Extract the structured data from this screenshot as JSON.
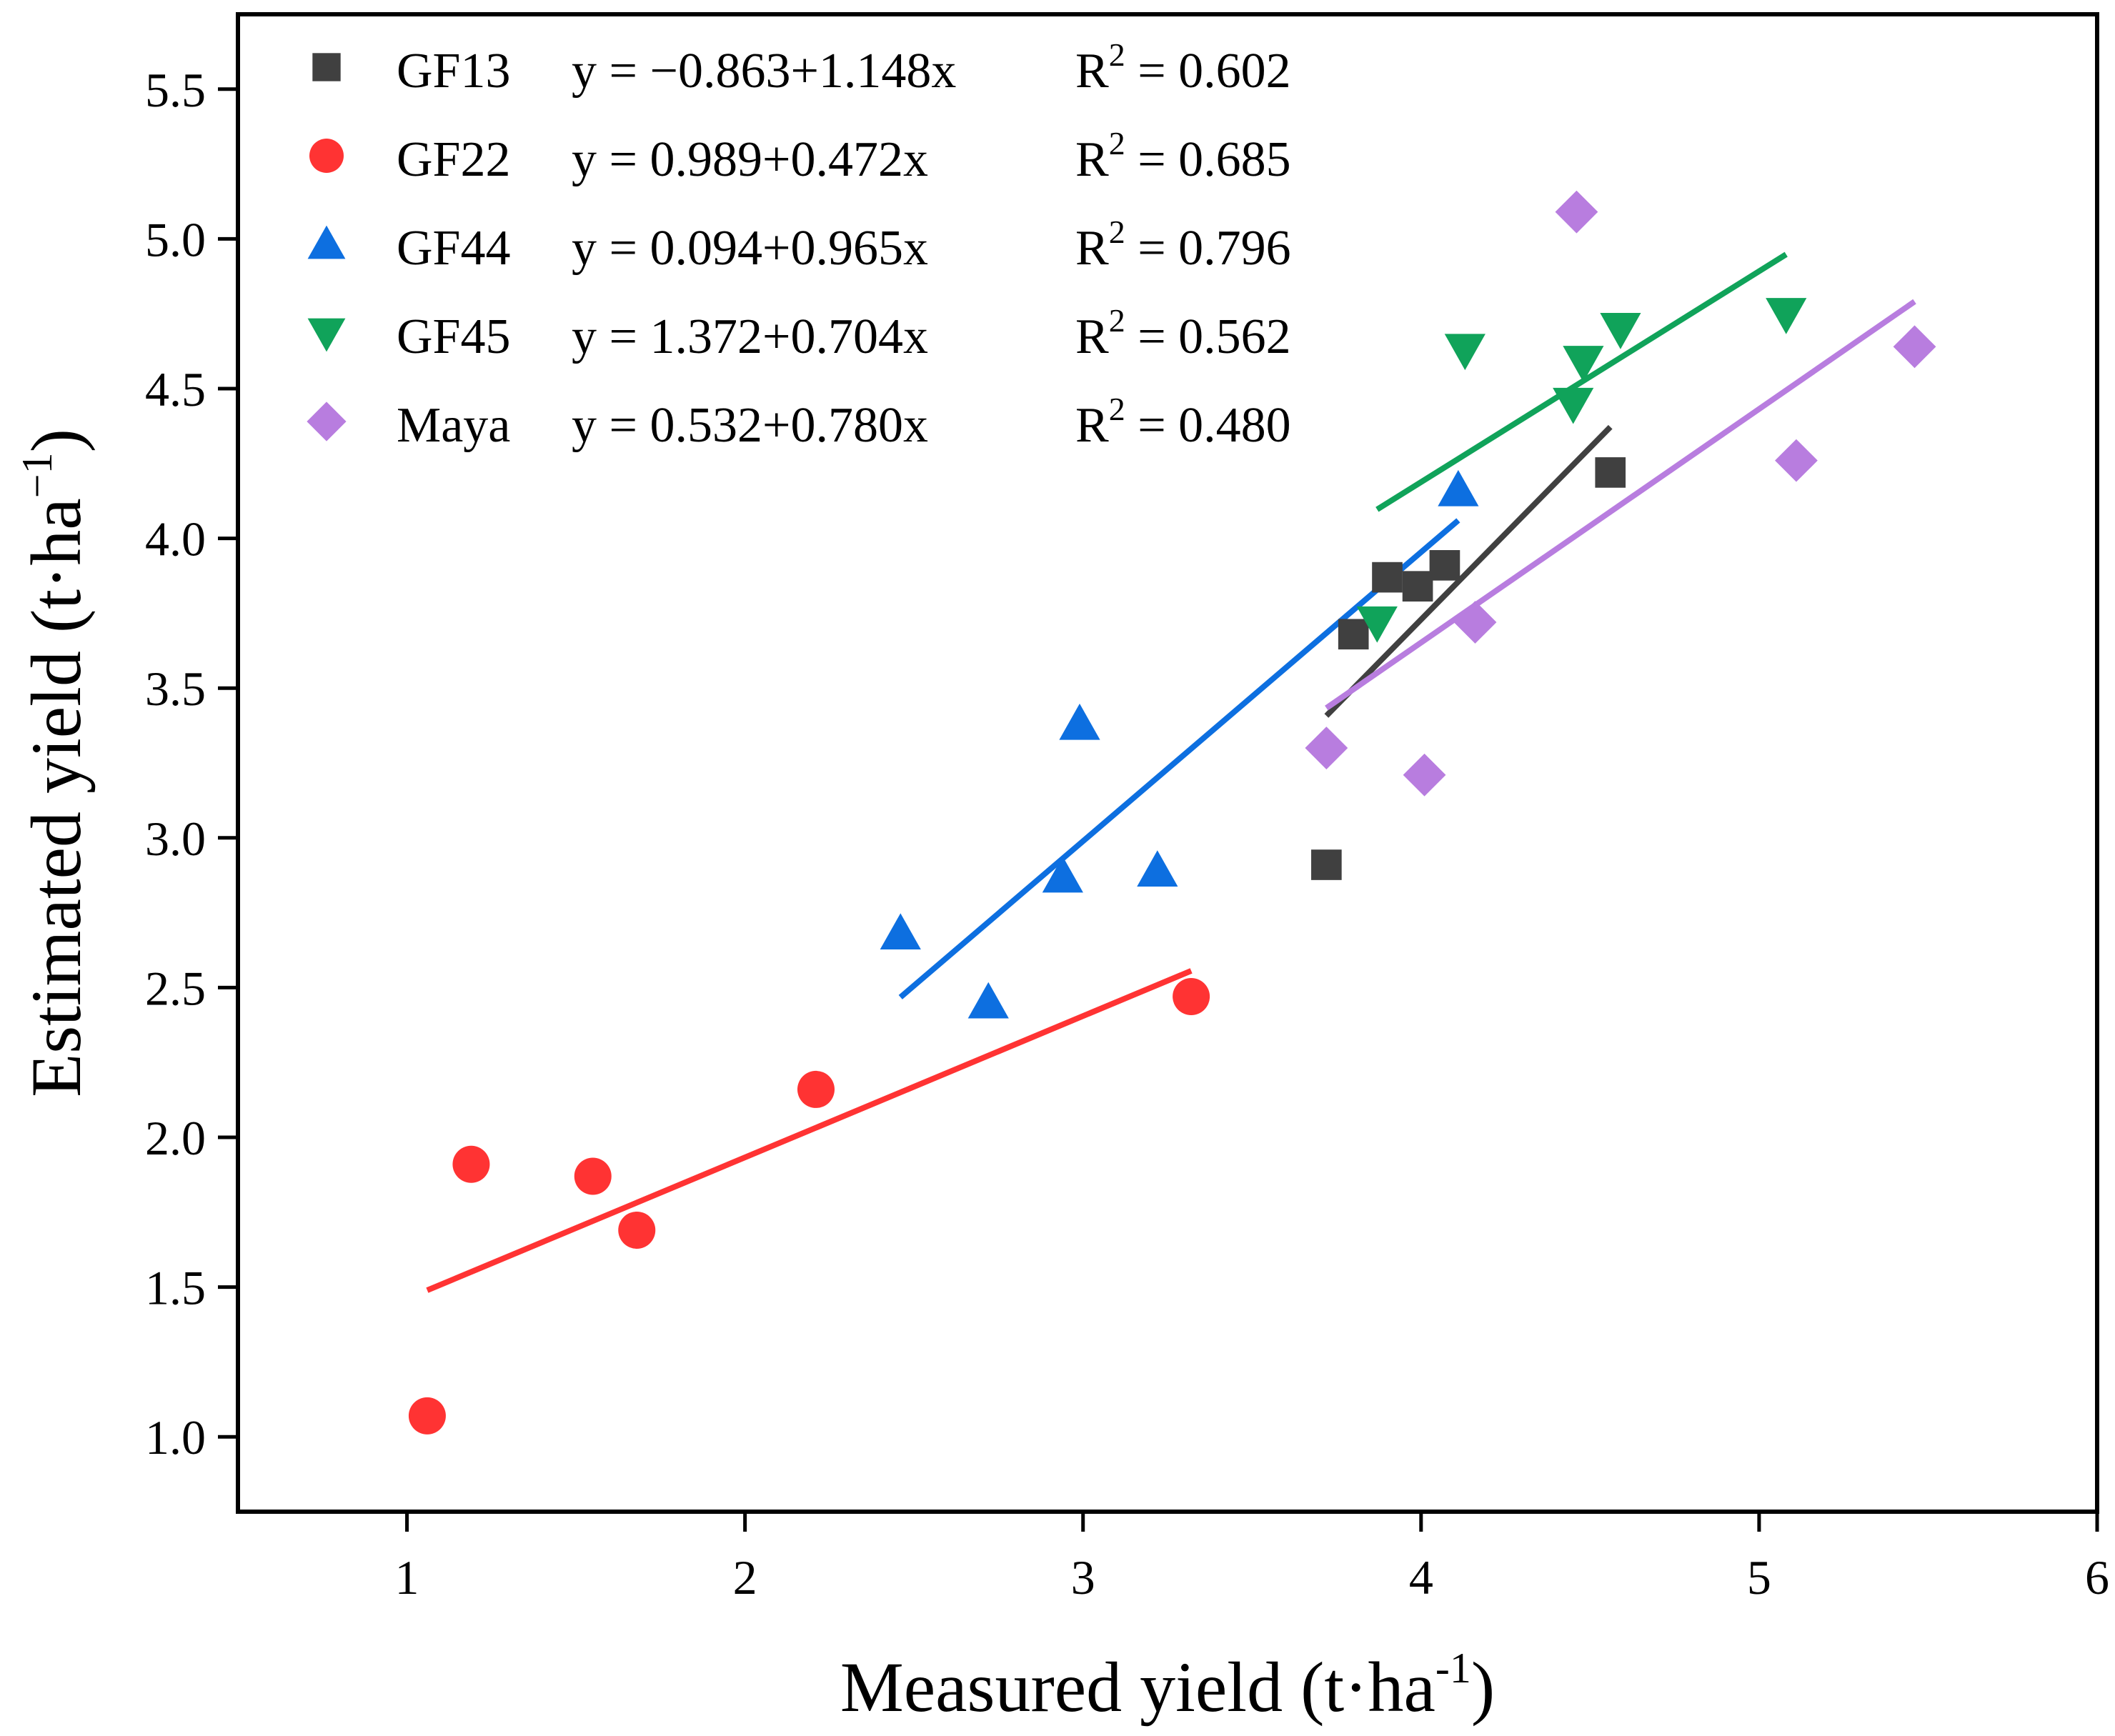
{
  "chart_data": {
    "type": "scatter",
    "xlabel": "Measured yield (t·ha",
    "xlabel_sup": "-1",
    "xlabel_tail": ")",
    "ylabel": "Estimated yield (t·ha",
    "ylabel_sup": "−1",
    "ylabel_tail": ")",
    "xlim": [
      0.5,
      6
    ],
    "ylim": [
      0.75,
      5.75
    ],
    "xticks": [
      1,
      2,
      3,
      4,
      5,
      6
    ],
    "yticks": [
      1.0,
      1.5,
      2.0,
      2.5,
      3.0,
      3.5,
      4.0,
      4.5,
      5.0,
      5.5
    ],
    "xtick_labels": [
      "1",
      "2",
      "3",
      "4",
      "5",
      "6"
    ],
    "ytick_labels": [
      "1.0",
      "1.5",
      "2.0",
      "2.5",
      "3.0",
      "3.5",
      "4.0",
      "4.5",
      "5.0",
      "5.5"
    ],
    "legend_position": "top-left",
    "series": [
      {
        "name": "GF13",
        "marker": "square",
        "color": "#404040",
        "equation": "y = −0.863+1.148x",
        "r2_label": "R",
        "r2_sup": "2",
        "r2_value": " = 0.602",
        "intercept": -0.863,
        "slope": 1.148,
        "fit_range": [
          3.72,
          4.56
        ],
        "points": [
          [
            3.72,
            2.91
          ],
          [
            3.8,
            3.68
          ],
          [
            3.9,
            3.87
          ],
          [
            3.99,
            3.84
          ],
          [
            4.07,
            3.91
          ],
          [
            4.56,
            4.22
          ]
        ]
      },
      {
        "name": "GF22",
        "marker": "circle",
        "color": "#ff3333",
        "equation": "y = 0.989+0.472x",
        "r2_label": "R",
        "r2_sup": "2",
        "r2_value": " = 0.685",
        "intercept": 0.989,
        "slope": 0.472,
        "fit_range": [
          1.06,
          3.32
        ],
        "points": [
          [
            1.06,
            1.07
          ],
          [
            1.19,
            1.91
          ],
          [
            1.55,
            1.87
          ],
          [
            1.68,
            1.69
          ],
          [
            2.21,
            2.16
          ],
          [
            3.32,
            2.47
          ]
        ]
      },
      {
        "name": "GF44",
        "marker": "triangle-up",
        "color": "#0d6fe0",
        "equation": "y = 0.094+0.965x",
        "r2_label": "R",
        "r2_sup": "2",
        "r2_value": " = 0.796",
        "intercept": 0.094,
        "slope": 0.965,
        "fit_range": [
          2.46,
          4.11
        ],
        "points": [
          [
            2.46,
            2.68
          ],
          [
            2.72,
            2.45
          ],
          [
            2.94,
            2.87
          ],
          [
            2.99,
            3.38
          ],
          [
            3.22,
            2.89
          ],
          [
            4.11,
            4.16
          ]
        ]
      },
      {
        "name": "GF45",
        "marker": "triangle-down",
        "color": "#10a35a",
        "equation": "y = 1.372+0.704x",
        "r2_label": "R",
        "r2_sup": "2",
        "r2_value": " = 0.562",
        "intercept": 1.372,
        "slope": 0.704,
        "fit_range": [
          3.87,
          5.08
        ],
        "points": [
          [
            3.87,
            3.72
          ],
          [
            4.13,
            4.63
          ],
          [
            4.45,
            4.45
          ],
          [
            4.48,
            4.59
          ],
          [
            4.59,
            4.7
          ],
          [
            5.08,
            4.75
          ]
        ]
      },
      {
        "name": "Maya",
        "marker": "diamond",
        "color": "#b87ddf",
        "equation": "y = 0.532+0.780x",
        "r2_label": "R",
        "r2_sup": "2",
        "r2_value": " = 0.480",
        "intercept": 0.532,
        "slope": 0.78,
        "fit_range": [
          3.72,
          5.46
        ],
        "points": [
          [
            3.72,
            3.3
          ],
          [
            4.01,
            3.21
          ],
          [
            4.16,
            3.72
          ],
          [
            4.46,
            5.09
          ],
          [
            5.11,
            4.26
          ],
          [
            5.46,
            4.64
          ]
        ]
      }
    ]
  }
}
